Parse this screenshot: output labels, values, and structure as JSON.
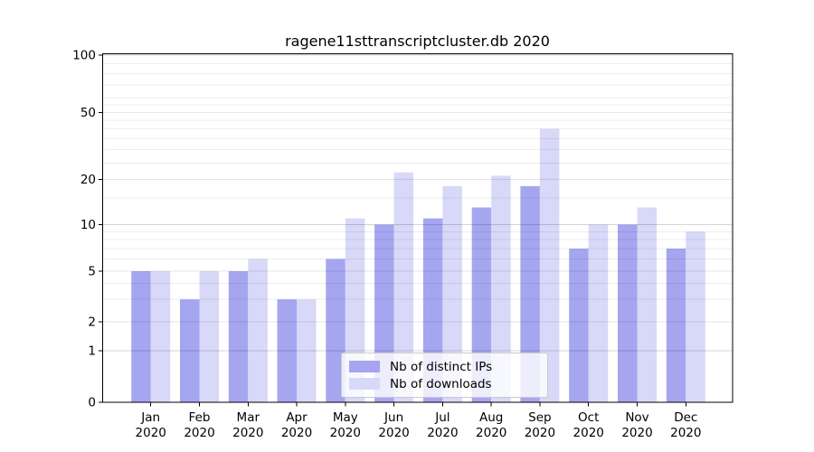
{
  "chart_data": {
    "type": "bar",
    "title": "ragene11sttranscriptcluster.db 2020",
    "categories": [
      "Jan",
      "Feb",
      "Mar",
      "Apr",
      "May",
      "Jun",
      "Jul",
      "Aug",
      "Sep",
      "Oct",
      "Nov",
      "Dec"
    ],
    "x_tick_second_line": "2020",
    "series": [
      {
        "name": "Nb of distinct IPs",
        "color": "#a5a5f0",
        "values": [
          5,
          3,
          5,
          3,
          6,
          10,
          11,
          13,
          18,
          7,
          10,
          7
        ]
      },
      {
        "name": "Nb of downloads",
        "color": "#d8d8f8",
        "values": [
          5,
          5,
          6,
          3,
          11,
          22,
          18,
          21,
          40,
          10,
          13,
          9
        ]
      }
    ],
    "xlabel": "",
    "ylabel": "",
    "ylim": [
      0,
      100
    ],
    "y_scale": "log-like (0,1 linear then logarithmic)",
    "y_ticks": [
      0,
      1,
      2,
      5,
      10,
      20,
      50,
      100
    ],
    "y_major_gridlines": [
      1,
      10,
      100
    ],
    "y_mid_gridlines": [
      2,
      5,
      20,
      50
    ],
    "y_minor_gridlines": [
      3,
      4,
      6,
      7,
      8,
      9,
      15,
      25,
      30,
      35,
      40,
      45,
      55,
      60,
      70,
      80,
      90
    ],
    "grid": true,
    "legend_position": "lower center",
    "colors": {
      "distinct_ips_bar": "#a5a5f0",
      "downloads_bar": "#d8d8f8",
      "axis": "#000000",
      "major_grid": "rgba(0,0,0,0.17)",
      "mid_grid": "rgba(0,0,0,0.10)",
      "minor_grid": "rgba(0,0,0,0.07)"
    }
  }
}
